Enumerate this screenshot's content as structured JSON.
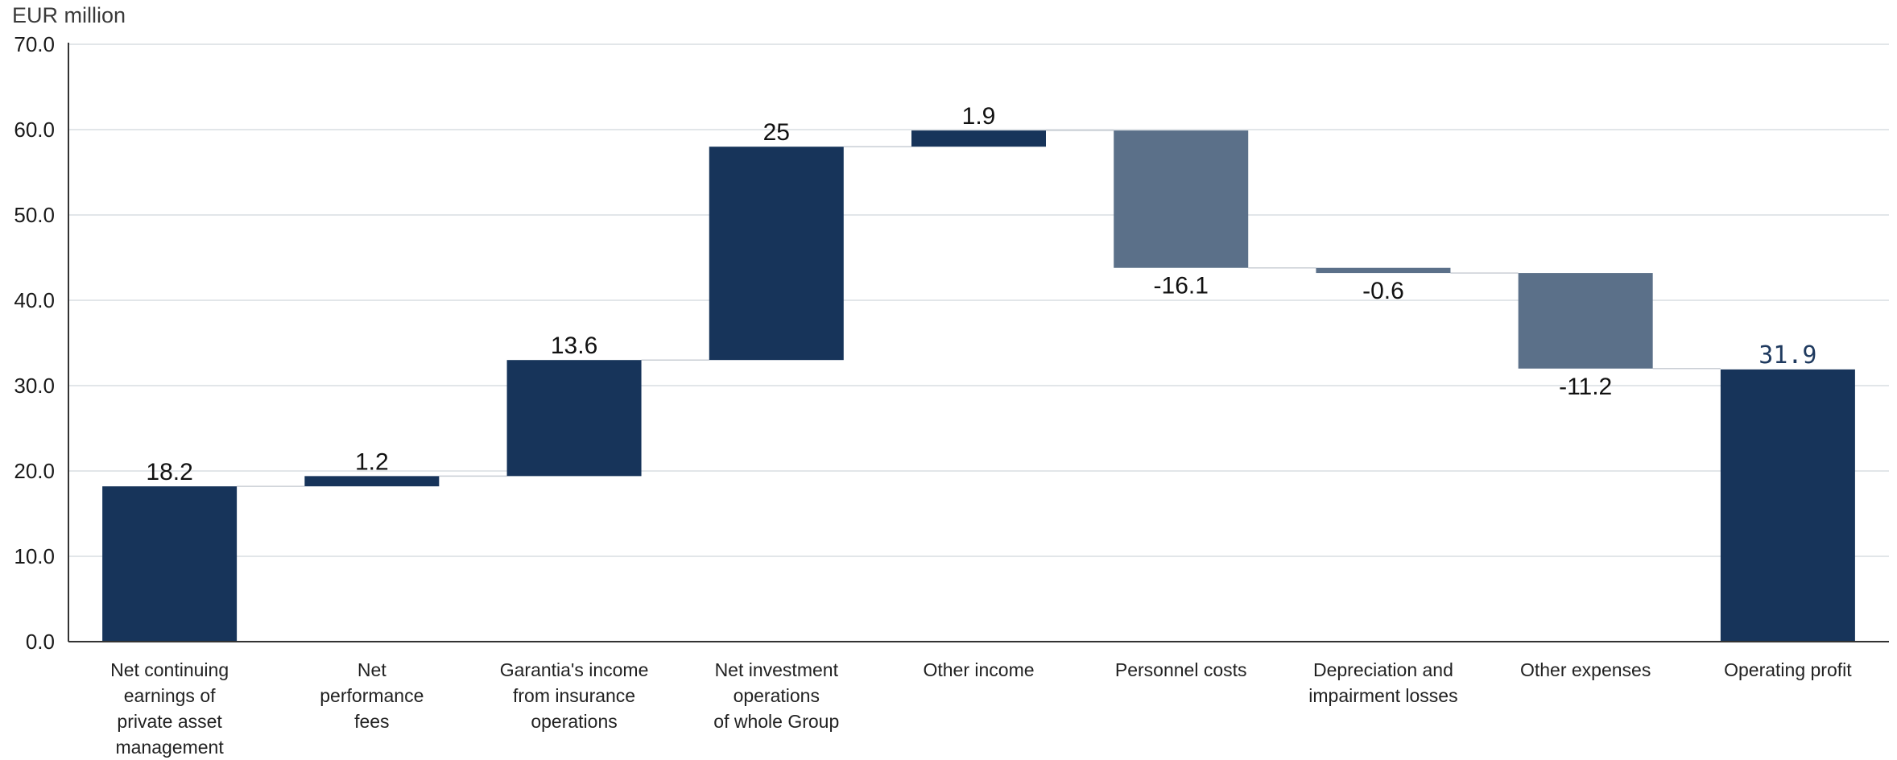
{
  "chart_data": {
    "type": "bar",
    "subtype": "waterfall",
    "unit_label": "EUR million",
    "ylim": [
      0,
      70
    ],
    "yticks": [
      "0.0",
      "10.0",
      "20.0",
      "30.0",
      "40.0",
      "50.0",
      "60.0",
      "70.0"
    ],
    "grid": true,
    "legend": "none",
    "colors": {
      "increase": "#17345a",
      "decrease": "#5b7089",
      "total": "#17345a"
    },
    "steps": [
      {
        "category": "Net continuing earnings of private asset management",
        "label_lines": [
          "Net continuing",
          "earnings of",
          "private asset",
          "management"
        ],
        "value": 18.2,
        "value_label": "18.2",
        "kind": "increase"
      },
      {
        "category": "Net performance fees",
        "label_lines": [
          "Net",
          "performance",
          "fees"
        ],
        "value": 1.2,
        "value_label": "1.2",
        "kind": "increase"
      },
      {
        "category": "Garantia's income from insurance operations",
        "label_lines": [
          "Garantia's income",
          "from insurance",
          "operations"
        ],
        "value": 13.6,
        "value_label": "13.6",
        "kind": "increase"
      },
      {
        "category": "Net investment operations of whole Group",
        "label_lines": [
          "Net investment",
          "operations",
          "of whole Group"
        ],
        "value": 25,
        "value_label": "25",
        "kind": "increase"
      },
      {
        "category": "Other income",
        "label_lines": [
          "Other income"
        ],
        "value": 1.9,
        "value_label": "1.9",
        "kind": "increase"
      },
      {
        "category": "Personnel costs",
        "label_lines": [
          "Personnel costs"
        ],
        "value": -16.1,
        "value_label": "-16.1",
        "kind": "decrease"
      },
      {
        "category": "Depreciation and impairment losses",
        "label_lines": [
          "Depreciation and",
          "impairment losses"
        ],
        "value": -0.6,
        "value_label": "-0.6",
        "kind": "decrease"
      },
      {
        "category": "Other expenses",
        "label_lines": [
          "Other expenses"
        ],
        "value": -11.2,
        "value_label": "-11.2",
        "kind": "decrease"
      },
      {
        "category": "Operating profit",
        "label_lines": [
          "Operating profit"
        ],
        "value": 31.9,
        "value_label": "31.9",
        "kind": "total"
      }
    ]
  }
}
